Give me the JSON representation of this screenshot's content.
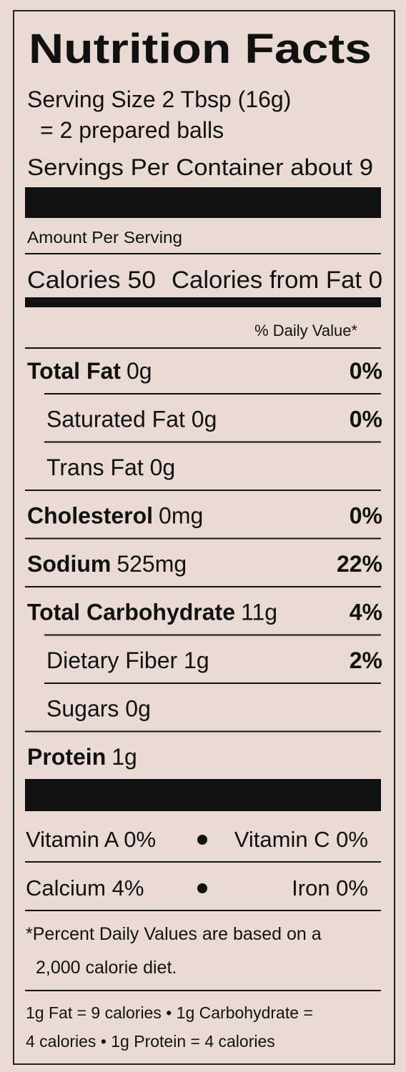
{
  "title": "Nutrition Facts",
  "serving": [
    "Serving Size 2 Tbsp (16g)",
    "= 2 prepared balls",
    "Servings Per Container about 9"
  ],
  "amount_per_serving": "Amount Per Serving",
  "calories": "Calories 50",
  "calories_from_fat": "Calories from Fat 0",
  "daily_value_header": "% Daily Value*",
  "nutrients": [
    {
      "name": "Total Fat",
      "amount": "0g",
      "dv": "0%",
      "sub": [
        {
          "name": "Saturated Fat 0g",
          "dv": "0%"
        },
        {
          "name": "Trans Fat 0g"
        }
      ]
    },
    {
      "name": "Cholesterol",
      "amount": "0mg",
      "dv": "0%"
    },
    {
      "name": "Sodium",
      "amount": "525mg",
      "dv": "22%"
    },
    {
      "name": "Total Carbohydrate",
      "amount": "11g",
      "dv": "4%",
      "sub": [
        {
          "name": "Dietary Fiber 1g",
          "dv": "2%"
        },
        {
          "name": "Sugars 0g"
        }
      ]
    },
    {
      "name": "Protein",
      "amount": "1g"
    }
  ],
  "vitamins": [
    [
      "Vitamin A 0%",
      "Vitamin C 0%"
    ],
    [
      "Calcium 4%",
      "Iron 0%"
    ]
  ],
  "footnote": [
    "*Percent Daily Values are based on a",
    "2,000 calorie diet."
  ],
  "conversion": [
    "1g Fat = 9 calories • 1g Carbohydrate =",
    "4 calories • 1g Protein = 4 calories"
  ]
}
